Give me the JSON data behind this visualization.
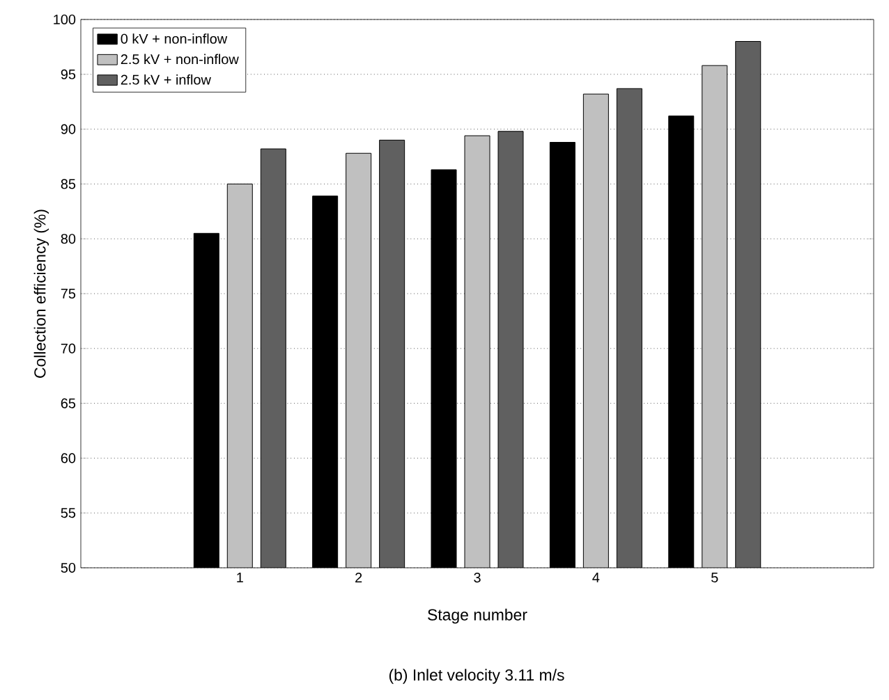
{
  "chart_data": {
    "type": "bar",
    "title": "(b) Inlet velocity 3.11 m/s",
    "xlabel": "Stage number",
    "ylabel": "Collection efficiency (%)",
    "categories": [
      "1",
      "2",
      "3",
      "4",
      "5"
    ],
    "series": [
      {
        "name": "0 kV + non-inflow",
        "color": "#000000",
        "values": [
          80.5,
          83.9,
          86.3,
          88.8,
          91.2
        ]
      },
      {
        "name": "2.5 kV + non-inflow",
        "color": "#c0c0c0",
        "values": [
          85.0,
          87.8,
          89.4,
          93.2,
          95.8
        ]
      },
      {
        "name": "2.5 kV + inflow",
        "color": "#606060",
        "values": [
          88.2,
          89.0,
          89.8,
          93.7,
          98.0
        ]
      }
    ],
    "ylim": [
      50,
      100
    ],
    "yticks": [
      50,
      55,
      60,
      65,
      70,
      75,
      80,
      85,
      90,
      95,
      100
    ],
    "grid": "y",
    "legend": "top left"
  }
}
